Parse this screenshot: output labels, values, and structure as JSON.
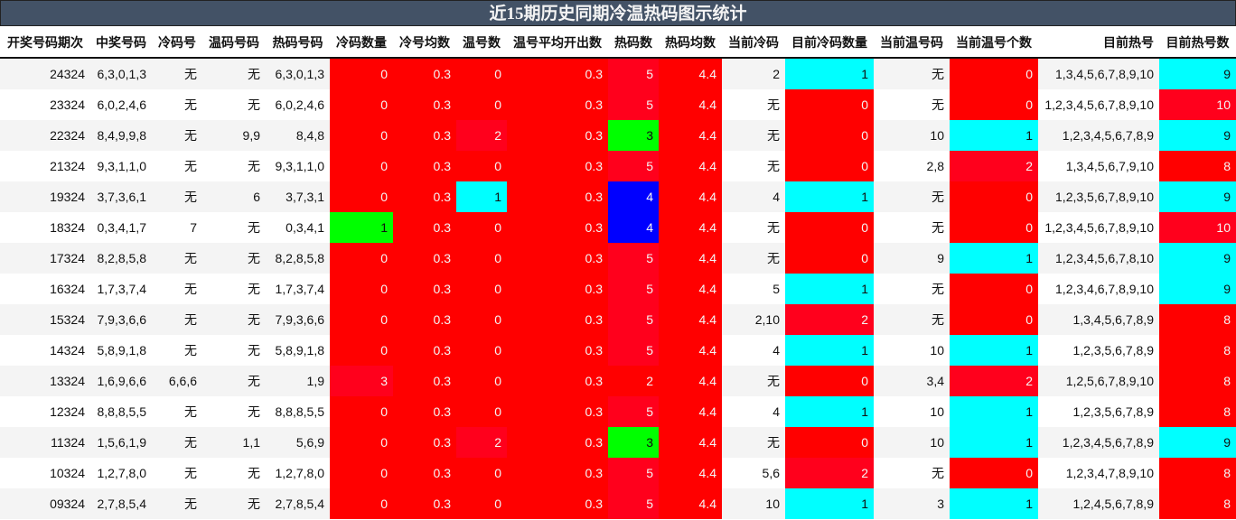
{
  "title": "近15期历史同期冷温热码图示统计",
  "headers": [
    "开奖号码期次",
    "中奖号码",
    "冷码号",
    "温码号码",
    "热码号码",
    "冷码数量",
    "冷号均数",
    "温号数",
    "温号平均开出数",
    "热码数",
    "热码均数",
    "当前冷码",
    "目前冷码数量",
    "当前温号码",
    "当前温号个数",
    "目前热号",
    "目前热号数"
  ],
  "palette": {
    "r": "#ff0000",
    "r2": "#ff001c",
    "c": "#00ffff",
    "g": "#00ff00",
    "b": "#0000ff"
  },
  "rows": [
    {
      "cells": [
        "24324",
        "6,3,0,1,3",
        "无",
        "无",
        "6,3,0,1,3",
        "0",
        "0.3",
        "0",
        "0.3",
        "5",
        "4.4",
        "2",
        "1",
        "无",
        "0",
        "1,3,4,5,6,7,8,9,10",
        "9"
      ],
      "colors": {
        "5": "r",
        "6": "r",
        "7": "r",
        "8": "r",
        "9": "r2",
        "10": "r",
        "12": "c",
        "14": "r",
        "16": "c"
      }
    },
    {
      "cells": [
        "23324",
        "6,0,2,4,6",
        "无",
        "无",
        "6,0,2,4,6",
        "0",
        "0.3",
        "0",
        "0.3",
        "5",
        "4.4",
        "无",
        "0",
        "无",
        "0",
        "1,2,3,4,5,6,7,8,9,10",
        "10"
      ],
      "colors": {
        "5": "r",
        "6": "r",
        "7": "r",
        "8": "r",
        "9": "r2",
        "10": "r",
        "12": "r",
        "14": "r",
        "16": "r2"
      }
    },
    {
      "cells": [
        "22324",
        "8,4,9,9,8",
        "无",
        "9,9",
        "8,4,8",
        "0",
        "0.3",
        "2",
        "0.3",
        "3",
        "4.4",
        "无",
        "0",
        "10",
        "1",
        "1,2,3,4,5,6,7,8,9",
        "9"
      ],
      "colors": {
        "5": "r",
        "6": "r",
        "7": "r2",
        "8": "r",
        "9": "g",
        "10": "r",
        "12": "r",
        "14": "c",
        "16": "c"
      }
    },
    {
      "cells": [
        "21324",
        "9,3,1,1,0",
        "无",
        "无",
        "9,3,1,1,0",
        "0",
        "0.3",
        "0",
        "0.3",
        "5",
        "4.4",
        "无",
        "0",
        "2,8",
        "2",
        "1,3,4,5,6,7,9,10",
        "8"
      ],
      "colors": {
        "5": "r",
        "6": "r",
        "7": "r",
        "8": "r",
        "9": "r2",
        "10": "r",
        "12": "r",
        "14": "r2",
        "16": "r"
      }
    },
    {
      "cells": [
        "19324",
        "3,7,3,6,1",
        "无",
        "6",
        "3,7,3,1",
        "0",
        "0.3",
        "1",
        "0.3",
        "4",
        "4.4",
        "4",
        "1",
        "无",
        "0",
        "1,2,3,5,6,7,8,9,10",
        "9"
      ],
      "colors": {
        "5": "r",
        "6": "r",
        "7": "c",
        "8": "r",
        "9": "b",
        "10": "r",
        "12": "c",
        "14": "r",
        "16": "c"
      }
    },
    {
      "cells": [
        "18324",
        "0,3,4,1,7",
        "7",
        "无",
        "0,3,4,1",
        "1",
        "0.3",
        "0",
        "0.3",
        "4",
        "4.4",
        "无",
        "0",
        "无",
        "0",
        "1,2,3,4,5,6,7,8,9,10",
        "10"
      ],
      "colors": {
        "5": "g",
        "6": "r",
        "7": "r",
        "8": "r",
        "9": "b",
        "10": "r",
        "12": "r",
        "14": "r",
        "16": "r2"
      }
    },
    {
      "cells": [
        "17324",
        "8,2,8,5,8",
        "无",
        "无",
        "8,2,8,5,8",
        "0",
        "0.3",
        "0",
        "0.3",
        "5",
        "4.4",
        "无",
        "0",
        "9",
        "1",
        "1,2,3,4,5,6,7,8,10",
        "9"
      ],
      "colors": {
        "5": "r",
        "6": "r",
        "7": "r",
        "8": "r",
        "9": "r2",
        "10": "r",
        "12": "r",
        "14": "c",
        "16": "c"
      }
    },
    {
      "cells": [
        "16324",
        "1,7,3,7,4",
        "无",
        "无",
        "1,7,3,7,4",
        "0",
        "0.3",
        "0",
        "0.3",
        "5",
        "4.4",
        "5",
        "1",
        "无",
        "0",
        "1,2,3,4,6,7,8,9,10",
        "9"
      ],
      "colors": {
        "5": "r",
        "6": "r",
        "7": "r",
        "8": "r",
        "9": "r2",
        "10": "r",
        "12": "c",
        "14": "r",
        "16": "c"
      }
    },
    {
      "cells": [
        "15324",
        "7,9,3,6,6",
        "无",
        "无",
        "7,9,3,6,6",
        "0",
        "0.3",
        "0",
        "0.3",
        "5",
        "4.4",
        "2,10",
        "2",
        "无",
        "0",
        "1,3,4,5,6,7,8,9",
        "8"
      ],
      "colors": {
        "5": "r",
        "6": "r",
        "7": "r",
        "8": "r",
        "9": "r2",
        "10": "r",
        "12": "r2",
        "14": "r",
        "16": "r"
      }
    },
    {
      "cells": [
        "14324",
        "5,8,9,1,8",
        "无",
        "无",
        "5,8,9,1,8",
        "0",
        "0.3",
        "0",
        "0.3",
        "5",
        "4.4",
        "4",
        "1",
        "10",
        "1",
        "1,2,3,5,6,7,8,9",
        "8"
      ],
      "colors": {
        "5": "r",
        "6": "r",
        "7": "r",
        "8": "r",
        "9": "r2",
        "10": "r",
        "12": "c",
        "14": "c",
        "16": "r"
      }
    },
    {
      "cells": [
        "13324",
        "1,6,9,6,6",
        "6,6,6",
        "无",
        "1,9",
        "3",
        "0.3",
        "0",
        "0.3",
        "2",
        "4.4",
        "无",
        "0",
        "3,4",
        "2",
        "1,2,5,6,7,8,9,10",
        "8"
      ],
      "colors": {
        "5": "r2",
        "6": "r",
        "7": "r",
        "8": "r",
        "9": "r",
        "10": "r",
        "12": "r",
        "14": "r2",
        "16": "r"
      }
    },
    {
      "cells": [
        "12324",
        "8,8,8,5,5",
        "无",
        "无",
        "8,8,8,5,5",
        "0",
        "0.3",
        "0",
        "0.3",
        "5",
        "4.4",
        "4",
        "1",
        "10",
        "1",
        "1,2,3,5,6,7,8,9",
        "8"
      ],
      "colors": {
        "5": "r",
        "6": "r",
        "7": "r",
        "8": "r",
        "9": "r2",
        "10": "r",
        "12": "c",
        "14": "c",
        "16": "r"
      }
    },
    {
      "cells": [
        "11324",
        "1,5,6,1,9",
        "无",
        "1,1",
        "5,6,9",
        "0",
        "0.3",
        "2",
        "0.3",
        "3",
        "4.4",
        "无",
        "0",
        "10",
        "1",
        "1,2,3,4,5,6,7,8,9",
        "9"
      ],
      "colors": {
        "5": "r",
        "6": "r",
        "7": "r2",
        "8": "r",
        "9": "g",
        "10": "r",
        "12": "r",
        "14": "c",
        "16": "c"
      }
    },
    {
      "cells": [
        "10324",
        "1,2,7,8,0",
        "无",
        "无",
        "1,2,7,8,0",
        "0",
        "0.3",
        "0",
        "0.3",
        "5",
        "4.4",
        "5,6",
        "2",
        "无",
        "0",
        "1,2,3,4,7,8,9,10",
        "8"
      ],
      "colors": {
        "5": "r",
        "6": "r",
        "7": "r",
        "8": "r",
        "9": "r2",
        "10": "r",
        "12": "r2",
        "14": "r",
        "16": "r"
      }
    },
    {
      "cells": [
        "09324",
        "2,7,8,5,4",
        "无",
        "无",
        "2,7,8,5,4",
        "0",
        "0.3",
        "0",
        "0.3",
        "5",
        "4.4",
        "10",
        "1",
        "3",
        "1",
        "1,2,4,5,6,7,8,9",
        "8"
      ],
      "colors": {
        "5": "r",
        "6": "r",
        "7": "r",
        "8": "r",
        "9": "r2",
        "10": "r",
        "12": "c",
        "14": "c",
        "16": "r"
      }
    }
  ]
}
